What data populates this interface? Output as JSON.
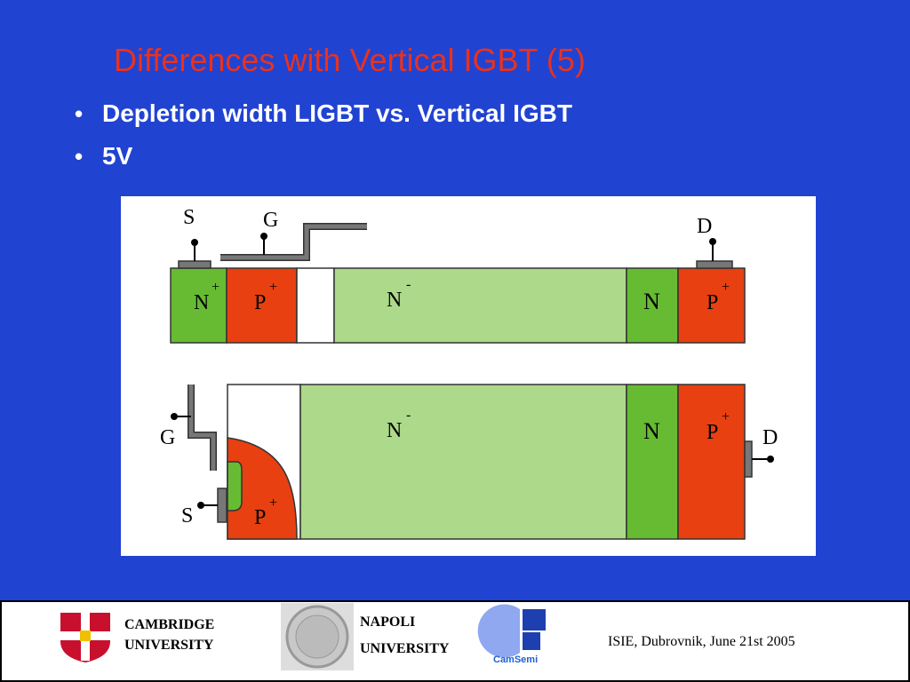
{
  "title": "Differences with Vertical IGBT (5)",
  "bullets": [
    "Depletion width  LIGBT vs. Vertical IGBT",
    "5V"
  ],
  "diagram": {
    "lateral": {
      "terminals": {
        "source": "S",
        "gate": "G",
        "drain": "D"
      },
      "regions": [
        {
          "label": "N",
          "sup": "+"
        },
        {
          "label": "P",
          "sup": "+"
        },
        {
          "label": "N",
          "sup": "-"
        },
        {
          "label": "N"
        },
        {
          "label": "P",
          "sup": "+"
        }
      ]
    },
    "vertical": {
      "terminals": {
        "source": "S",
        "gate": "G",
        "drain": "D"
      },
      "regions": [
        {
          "label": "N",
          "sup": "-"
        },
        {
          "label": "N"
        },
        {
          "label": "P",
          "sup": "+"
        },
        {
          "label": "P",
          "sup": "+"
        }
      ]
    }
  },
  "footer": {
    "cambridge": [
      "CAMBRIDGE",
      "UNIVERSITY"
    ],
    "napoli": [
      "NAPOLI",
      "UNIVERSITY"
    ],
    "camsemi": "CamSemi",
    "event": "ISIE,  Dubrovnik, June 21st 2005"
  }
}
